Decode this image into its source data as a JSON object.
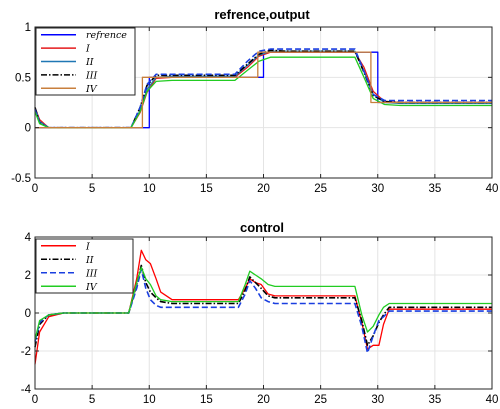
{
  "chart_data": [
    {
      "type": "line",
      "title": "refrence,output",
      "xlim": [
        0,
        40
      ],
      "ylim": [
        -0.5,
        1
      ],
      "xticks": [
        "0",
        "5",
        "10",
        "15",
        "20",
        "25",
        "30",
        "35",
        "40"
      ],
      "yticks": [
        "-0.5",
        "0",
        "0.5",
        "1"
      ],
      "grid": true,
      "legend_position": "top-left",
      "series": [
        {
          "name": "refrence",
          "color": "#0000ff",
          "dash": "solid",
          "x": [
            0,
            10,
            10,
            20,
            20,
            30,
            30,
            40
          ],
          "y": [
            0,
            0,
            0.5,
            0.5,
            0.75,
            0.75,
            0.25,
            0.25
          ]
        },
        {
          "name": "I",
          "color": "#e41a1c",
          "dash": "solid",
          "x": [
            0,
            0.4,
            1.2,
            8.4,
            9.2,
            9.8,
            10.6,
            12,
            17.5,
            18.6,
            19.6,
            20.6,
            22,
            28,
            28.8,
            29.6,
            30.6,
            32,
            40
          ],
          "y": [
            0.2,
            0.08,
            0,
            0,
            0.15,
            0.35,
            0.49,
            0.5,
            0.5,
            0.6,
            0.71,
            0.75,
            0.75,
            0.75,
            0.6,
            0.36,
            0.26,
            0.25,
            0.25
          ]
        },
        {
          "name": "II",
          "color": "#1f77b4",
          "dash": "solid",
          "x": [
            0,
            0.4,
            1.2,
            8.4,
            9.2,
            9.8,
            10.6,
            12,
            17.5,
            18.6,
            19.6,
            20.6,
            22,
            28,
            28.8,
            29.6,
            30.6,
            32,
            40
          ],
          "y": [
            0.2,
            0.06,
            0,
            0,
            0.17,
            0.38,
            0.5,
            0.51,
            0.51,
            0.62,
            0.72,
            0.76,
            0.76,
            0.76,
            0.56,
            0.33,
            0.25,
            0.24,
            0.24
          ]
        },
        {
          "name": "III",
          "color": "#000000",
          "dash": "dashdot",
          "x": [
            0,
            0.4,
            1.2,
            8.4,
            9.2,
            9.8,
            10.6,
            12,
            17.5,
            18.6,
            19.6,
            20.6,
            22,
            28,
            28.8,
            29.6,
            30.6,
            32,
            40
          ],
          "y": [
            0.2,
            0.05,
            0,
            0,
            0.2,
            0.42,
            0.52,
            0.52,
            0.52,
            0.63,
            0.73,
            0.77,
            0.76,
            0.76,
            0.55,
            0.32,
            0.26,
            0.25,
            0.25
          ]
        },
        {
          "name": "",
          "color": "#1a3fe0",
          "dash": "dashed",
          "x": [
            0,
            0.4,
            1.2,
            8.4,
            9.2,
            9.8,
            10.6,
            12,
            17.5,
            18.6,
            19.6,
            20.6,
            22,
            28,
            28.8,
            29.6,
            30.6,
            32,
            40
          ],
          "y": [
            0.18,
            0.05,
            0,
            0,
            0.2,
            0.43,
            0.53,
            0.53,
            0.53,
            0.66,
            0.76,
            0.78,
            0.78,
            0.78,
            0.56,
            0.33,
            0.27,
            0.27,
            0.27
          ]
        },
        {
          "name": "",
          "color": "#22cc22",
          "dash": "solid",
          "x": [
            0,
            0.4,
            1.2,
            8.4,
            9.2,
            9.8,
            10.6,
            12,
            17.5,
            18.6,
            19.6,
            20.6,
            22,
            28,
            28.8,
            29.6,
            30.6,
            32,
            40
          ],
          "y": [
            0.16,
            0.04,
            0,
            0,
            0.16,
            0.36,
            0.46,
            0.47,
            0.47,
            0.57,
            0.66,
            0.7,
            0.7,
            0.7,
            0.5,
            0.29,
            0.23,
            0.22,
            0.22
          ]
        },
        {
          "name": "IV",
          "color": "#c87f3c",
          "dash": "solid",
          "x": [
            0,
            9.4,
            9.4,
            19.5,
            19.5,
            29.4,
            29.4,
            40
          ],
          "y": [
            0,
            0,
            0.5,
            0.5,
            0.75,
            0.75,
            0.25,
            0.25
          ]
        }
      ]
    },
    {
      "type": "line",
      "title": "control",
      "xlim": [
        0,
        40
      ],
      "ylim": [
        -4,
        4
      ],
      "xticks": [
        "0",
        "5",
        "10",
        "15",
        "20",
        "25",
        "30",
        "35",
        "40"
      ],
      "yticks": [
        "-4",
        "-2",
        "0",
        "2",
        "4"
      ],
      "grid": true,
      "legend_position": "top-left",
      "series": [
        {
          "name": "I",
          "color": "#ff0000",
          "dash": "solid",
          "x": [
            0,
            0.4,
            1.2,
            2.5,
            8.2,
            8.9,
            9.3,
            9.7,
            10.1,
            10.6,
            11,
            12,
            17.8,
            18.4,
            18.8,
            19.3,
            19.8,
            20.4,
            21,
            28,
            28.6,
            29.1,
            29.6,
            30.1,
            30.5,
            31,
            40
          ],
          "y": [
            -2.7,
            -1,
            -0.2,
            0,
            0,
            1.8,
            3.3,
            2.8,
            2.6,
            1.8,
            1.1,
            0.7,
            0.7,
            1.3,
            1.8,
            1.6,
            1.5,
            1.0,
            0.9,
            0.9,
            -0.5,
            -1.9,
            -1.7,
            -1.7,
            -0.6,
            0.2,
            0.2
          ]
        },
        {
          "name": "II",
          "color": "#000000",
          "dash": "dashdot",
          "x": [
            0,
            0.4,
            1.2,
            2.5,
            8.2,
            8.9,
            9.3,
            9.7,
            10.1,
            10.6,
            11,
            12,
            17.8,
            18.4,
            18.8,
            19.3,
            19.8,
            20.4,
            21,
            28,
            28.6,
            29.1,
            29.6,
            30.1,
            30.5,
            31,
            40
          ],
          "y": [
            -1.8,
            -0.6,
            -0.1,
            0,
            0,
            1.5,
            2.5,
            1.6,
            1.1,
            0.8,
            0.6,
            0.5,
            0.5,
            1.2,
            1.9,
            1.6,
            1.3,
            0.9,
            0.8,
            0.8,
            -0.4,
            -1.7,
            -1.2,
            -0.5,
            -0.1,
            0.3,
            0.3
          ]
        },
        {
          "name": "III",
          "color": "#1a3fe0",
          "dash": "dashed",
          "x": [
            0,
            0.4,
            1.2,
            2.5,
            8.2,
            8.9,
            9.3,
            9.7,
            10.1,
            10.6,
            11,
            12,
            17.8,
            18.4,
            18.8,
            19.3,
            19.8,
            20.4,
            21,
            28,
            28.6,
            29.1,
            29.6,
            30.1,
            30.5,
            31,
            40
          ],
          "y": [
            -1.5,
            -0.5,
            -0.1,
            0,
            0,
            1.3,
            2.3,
            1.3,
            0.7,
            0.4,
            0.3,
            0.3,
            0.3,
            1.0,
            1.7,
            1.3,
            0.8,
            0.6,
            0.5,
            0.5,
            -0.7,
            -2.1,
            -1.2,
            -0.4,
            -0.2,
            0.1,
            0.1
          ]
        },
        {
          "name": "IV",
          "color": "#22cc22",
          "dash": "solid",
          "x": [
            0,
            0.4,
            1.2,
            2.5,
            8.2,
            8.9,
            9.3,
            9.7,
            10.1,
            10.6,
            11,
            12,
            17.8,
            18.4,
            18.8,
            19.3,
            19.8,
            20.4,
            21,
            28,
            28.6,
            29.1,
            29.6,
            30.1,
            30.5,
            31,
            40
          ],
          "y": [
            -1.4,
            -0.4,
            -0.1,
            0,
            0,
            1.6,
            2.4,
            1.8,
            1.5,
            0.9,
            0.7,
            0.6,
            0.6,
            1.5,
            2.2,
            2.0,
            1.8,
            1.5,
            1.4,
            1.4,
            -0.1,
            -1.0,
            -0.7,
            -0.1,
            0.3,
            0.5,
            0.5
          ]
        }
      ]
    }
  ]
}
